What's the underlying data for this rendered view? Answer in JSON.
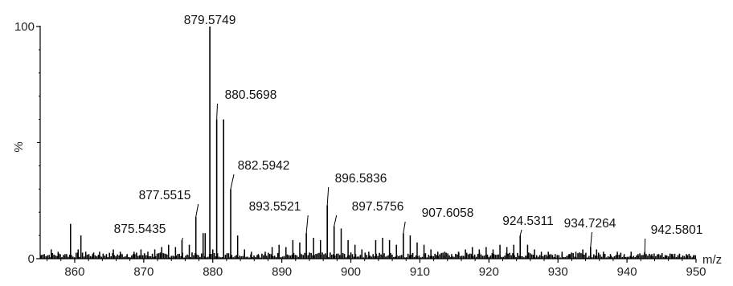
{
  "chart_data": {
    "type": "bar",
    "title": "",
    "xlabel": "m/z",
    "ylabel": "%",
    "xlim": [
      855,
      950
    ],
    "ylim": [
      0,
      100
    ],
    "xticks": [
      860,
      870,
      880,
      890,
      900,
      910,
      920,
      930,
      940,
      950
    ],
    "yticks": [
      0,
      100
    ],
    "grid": false,
    "legend": "none",
    "color": "#000000",
    "labeled_peaks": [
      {
        "x": 875.5435,
        "y": 8
      },
      {
        "x": 877.5515,
        "y": 18
      },
      {
        "x": 879.5749,
        "y": 100
      },
      {
        "x": 880.5698,
        "y": 60
      },
      {
        "x": 881.57,
        "y": 60
      },
      {
        "x": 882.5942,
        "y": 30
      },
      {
        "x": 893.5521,
        "y": 11
      },
      {
        "x": 896.5836,
        "y": 23
      },
      {
        "x": 897.5756,
        "y": 14
      },
      {
        "x": 907.6058,
        "y": 11
      },
      {
        "x": 924.5311,
        "y": 10
      },
      {
        "x": 934.7264,
        "y": 5
      },
      {
        "x": 942.5801,
        "y": 3
      }
    ],
    "peak_labels": [
      "879.5749",
      "880.5698",
      "882.5942",
      "877.5515",
      "875.5435",
      "893.5521",
      "896.5836",
      "897.5756",
      "907.6058",
      "924.5311",
      "934.7264",
      "942.5801"
    ],
    "background_peaks": [
      {
        "x": 855.6,
        "y": 2
      },
      {
        "x": 856.6,
        "y": 4
      },
      {
        "x": 857.6,
        "y": 3
      },
      {
        "x": 858.6,
        "y": 2
      },
      {
        "x": 859.4,
        "y": 15
      },
      {
        "x": 860.5,
        "y": 4
      },
      {
        "x": 860.9,
        "y": 10
      },
      {
        "x": 861.6,
        "y": 3
      },
      {
        "x": 862.6,
        "y": 2
      },
      {
        "x": 863.6,
        "y": 3
      },
      {
        "x": 864.6,
        "y": 2
      },
      {
        "x": 865.6,
        "y": 4
      },
      {
        "x": 866.6,
        "y": 3
      },
      {
        "x": 867.6,
        "y": 2
      },
      {
        "x": 868.6,
        "y": 3
      },
      {
        "x": 869.6,
        "y": 4
      },
      {
        "x": 870.6,
        "y": 3
      },
      {
        "x": 871.6,
        "y": 4
      },
      {
        "x": 872.6,
        "y": 5
      },
      {
        "x": 873.6,
        "y": 6
      },
      {
        "x": 874.6,
        "y": 5
      },
      {
        "x": 876.6,
        "y": 6
      },
      {
        "x": 878.6,
        "y": 11
      },
      {
        "x": 878.9,
        "y": 11
      },
      {
        "x": 880.0,
        "y": 4
      },
      {
        "x": 883.6,
        "y": 10
      },
      {
        "x": 884.6,
        "y": 4
      },
      {
        "x": 885.6,
        "y": 3
      },
      {
        "x": 886.6,
        "y": 2
      },
      {
        "x": 887.6,
        "y": 3
      },
      {
        "x": 888.6,
        "y": 5
      },
      {
        "x": 889.6,
        "y": 6
      },
      {
        "x": 890.6,
        "y": 5
      },
      {
        "x": 891.6,
        "y": 8
      },
      {
        "x": 892.6,
        "y": 7
      },
      {
        "x": 894.6,
        "y": 9
      },
      {
        "x": 895.6,
        "y": 8
      },
      {
        "x": 898.6,
        "y": 13
      },
      {
        "x": 899.6,
        "y": 8
      },
      {
        "x": 900.6,
        "y": 6
      },
      {
        "x": 901.6,
        "y": 4
      },
      {
        "x": 902.6,
        "y": 3
      },
      {
        "x": 903.6,
        "y": 8
      },
      {
        "x": 904.6,
        "y": 9
      },
      {
        "x": 905.6,
        "y": 8
      },
      {
        "x": 906.6,
        "y": 6
      },
      {
        "x": 908.6,
        "y": 10
      },
      {
        "x": 909.6,
        "y": 7
      },
      {
        "x": 910.6,
        "y": 6
      },
      {
        "x": 911.6,
        "y": 4
      },
      {
        "x": 912.6,
        "y": 3
      },
      {
        "x": 913.6,
        "y": 3
      },
      {
        "x": 914.6,
        "y": 2
      },
      {
        "x": 915.6,
        "y": 3
      },
      {
        "x": 916.6,
        "y": 4
      },
      {
        "x": 917.6,
        "y": 5
      },
      {
        "x": 918.6,
        "y": 4
      },
      {
        "x": 919.6,
        "y": 5
      },
      {
        "x": 920.6,
        "y": 4
      },
      {
        "x": 921.6,
        "y": 6
      },
      {
        "x": 922.6,
        "y": 5
      },
      {
        "x": 923.6,
        "y": 6
      },
      {
        "x": 925.6,
        "y": 6
      },
      {
        "x": 926.6,
        "y": 4
      },
      {
        "x": 927.6,
        "y": 3
      },
      {
        "x": 928.6,
        "y": 3
      },
      {
        "x": 929.6,
        "y": 2
      },
      {
        "x": 930.6,
        "y": 3
      },
      {
        "x": 931.6,
        "y": 2
      },
      {
        "x": 932.6,
        "y": 3
      },
      {
        "x": 933.6,
        "y": 4
      },
      {
        "x": 935.6,
        "y": 4
      },
      {
        "x": 936.6,
        "y": 3
      },
      {
        "x": 937.6,
        "y": 2
      },
      {
        "x": 938.6,
        "y": 3
      },
      {
        "x": 939.6,
        "y": 2
      },
      {
        "x": 940.6,
        "y": 3
      },
      {
        "x": 941.6,
        "y": 2
      },
      {
        "x": 943.6,
        "y": 2
      },
      {
        "x": 944.6,
        "y": 2
      },
      {
        "x": 945.6,
        "y": 1
      },
      {
        "x": 946.6,
        "y": 2
      },
      {
        "x": 947.6,
        "y": 1
      },
      {
        "x": 948.6,
        "y": 2
      },
      {
        "x": 949.6,
        "y": 1
      }
    ]
  }
}
